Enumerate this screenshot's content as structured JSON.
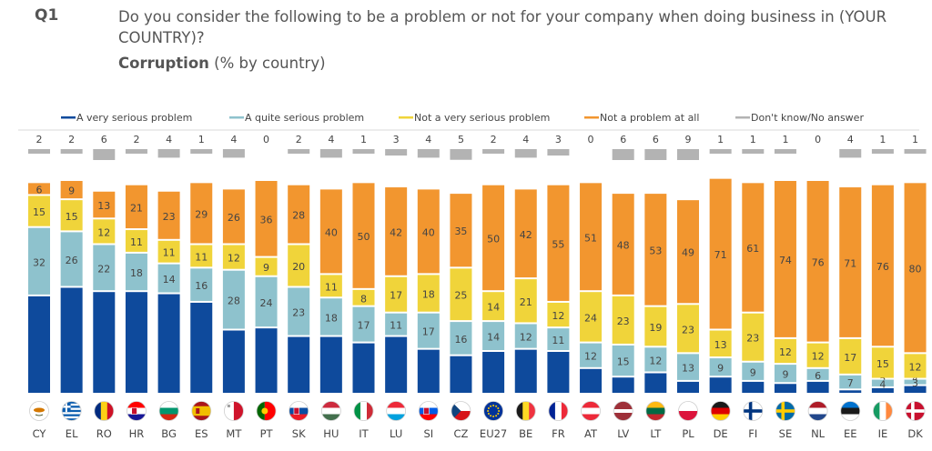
{
  "question": {
    "number": "Q1",
    "text": "Do you consider the following to be a problem or not for your company when doing business in (YOUR COUNTRY)?",
    "topic": "Corruption",
    "unit_note": "(% by country)"
  },
  "chart_data": {
    "type": "bar",
    "stacked": true,
    "normalized_to": 100,
    "legend_position": "top",
    "categories": [
      "CY",
      "EL",
      "RO",
      "HR",
      "BG",
      "ES",
      "MT",
      "PT",
      "SK",
      "HU",
      "IT",
      "LU",
      "SI",
      "CZ",
      "EU27",
      "BE",
      "FR",
      "AT",
      "LV",
      "LT",
      "PL",
      "DE",
      "FI",
      "SE",
      "NL",
      "EE",
      "IE",
      "DK"
    ],
    "series": [
      {
        "name": "A very serious problem",
        "color": "#0e4a9c",
        "values": [
          46,
          50,
          48,
          48,
          47,
          43,
          30,
          31,
          27,
          27,
          24,
          27,
          21,
          18,
          20,
          21,
          20,
          12,
          8,
          10,
          6,
          8,
          6,
          5,
          6,
          2,
          3,
          4
        ]
      },
      {
        "name": "A quite serious problem",
        "color": "#8ec2cd",
        "values": [
          32,
          26,
          22,
          18,
          14,
          16,
          28,
          24,
          23,
          18,
          17,
          11,
          17,
          16,
          14,
          12,
          11,
          12,
          15,
          12,
          13,
          9,
          9,
          9,
          6,
          7,
          4,
          3
        ]
      },
      {
        "name": "Not a very serious problem",
        "color": "#f0d43a",
        "values": [
          15,
          15,
          12,
          11,
          11,
          11,
          12,
          9,
          20,
          11,
          8,
          17,
          18,
          25,
          14,
          21,
          12,
          24,
          23,
          19,
          23,
          13,
          23,
          12,
          12,
          17,
          15,
          12
        ]
      },
      {
        "name": "Not a problem at all",
        "color": "#f2962f",
        "values": [
          6,
          9,
          13,
          21,
          23,
          29,
          26,
          36,
          28,
          40,
          50,
          42,
          40,
          35,
          50,
          42,
          55,
          51,
          48,
          53,
          49,
          71,
          61,
          74,
          76,
          71,
          76,
          80
        ]
      },
      {
        "name": "Don't know/No answer",
        "color": "#b3b3b3",
        "values": [
          2,
          2,
          6,
          2,
          4,
          1,
          4,
          0,
          2,
          4,
          1,
          3,
          4,
          5,
          2,
          4,
          3,
          0,
          6,
          6,
          9,
          1,
          1,
          1,
          0,
          4,
          1,
          1
        ]
      }
    ],
    "flags": {
      "CY": {
        "type": "cy"
      },
      "EL": {
        "type": "el"
      },
      "RO": {
        "type": "v",
        "colors": [
          "#002b7f",
          "#fcd116",
          "#ce1126"
        ]
      },
      "HR": {
        "type": "h",
        "colors": [
          "#ff0000",
          "#ffffff",
          "#171796"
        ],
        "emblem": true
      },
      "BG": {
        "type": "h",
        "colors": [
          "#ffffff",
          "#00966e",
          "#d62612"
        ]
      },
      "ES": {
        "type": "es"
      },
      "MT": {
        "type": "mt"
      },
      "PT": {
        "type": "pt"
      },
      "SK": {
        "type": "h",
        "colors": [
          "#ffffff",
          "#0b4ea2",
          "#ee1c25"
        ],
        "emblem": true
      },
      "HU": {
        "type": "h",
        "colors": [
          "#cd2a3e",
          "#ffffff",
          "#436f4d"
        ]
      },
      "IT": {
        "type": "v",
        "colors": [
          "#009246",
          "#ffffff",
          "#ce2b37"
        ]
      },
      "LU": {
        "type": "h",
        "colors": [
          "#ed2939",
          "#ffffff",
          "#00a1de"
        ]
      },
      "SI": {
        "type": "h",
        "colors": [
          "#ffffff",
          "#005ce5",
          "#ff0000"
        ],
        "emblem": true
      },
      "CZ": {
        "type": "cz"
      },
      "EU27": {
        "type": "eu"
      },
      "BE": {
        "type": "v",
        "colors": [
          "#1a1a1a",
          "#fdda24",
          "#ef3340"
        ]
      },
      "FR": {
        "type": "v",
        "colors": [
          "#002395",
          "#ffffff",
          "#ed2939"
        ]
      },
      "AT": {
        "type": "h",
        "colors": [
          "#ed2939",
          "#ffffff",
          "#ed2939"
        ]
      },
      "LV": {
        "type": "lv"
      },
      "LT": {
        "type": "h",
        "colors": [
          "#fdb913",
          "#006a44",
          "#c1272d"
        ]
      },
      "PL": {
        "type": "h2",
        "colors": [
          "#ffffff",
          "#dc143c"
        ]
      },
      "DE": {
        "type": "h",
        "colors": [
          "#1a1a1a",
          "#dd0000",
          "#ffce00"
        ]
      },
      "FI": {
        "type": "nordic",
        "colors": [
          "#ffffff",
          "#003580"
        ]
      },
      "SE": {
        "type": "nordic",
        "colors": [
          "#006aa7",
          "#fecc00"
        ]
      },
      "NL": {
        "type": "h",
        "colors": [
          "#ae1c28",
          "#ffffff",
          "#21468b"
        ]
      },
      "EE": {
        "type": "h",
        "colors": [
          "#0072ce",
          "#1a1a1a",
          "#ffffff"
        ]
      },
      "IE": {
        "type": "v",
        "colors": [
          "#169b62",
          "#ffffff",
          "#ff883e"
        ]
      },
      "DK": {
        "type": "nordic",
        "colors": [
          "#c8102e",
          "#ffffff"
        ]
      }
    }
  }
}
